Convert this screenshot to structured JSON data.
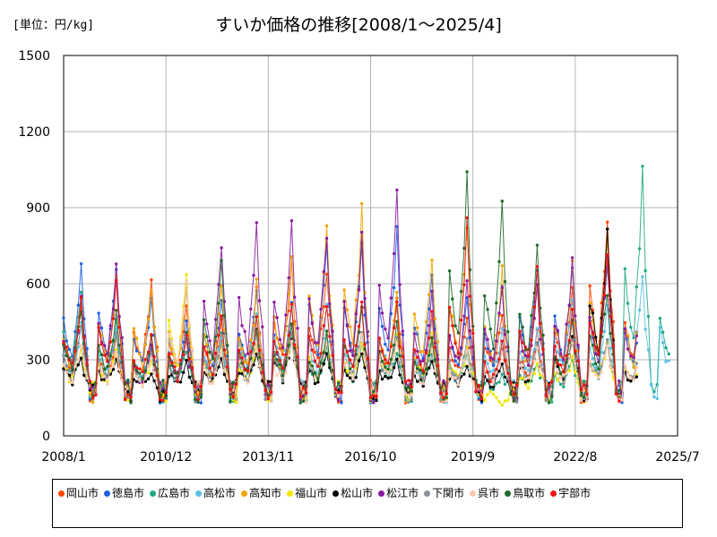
{
  "header": {
    "unit_label": "[単位：円/kg]",
    "title": "すいか価格の推移[2008/1～2025/4]"
  },
  "chart_data": {
    "type": "line",
    "title": "すいか価格の推移[2008/1～2025/4]",
    "unit": "[単位：円/kg]",
    "xlabel": "",
    "ylabel": "",
    "xlim": [
      "2008/1",
      "2025/7"
    ],
    "ylim": [
      0,
      1500
    ],
    "x_ticks": [
      "2008/1",
      "2010/12",
      "2013/11",
      "2016/10",
      "2019/9",
      "2022/8",
      "2025/7"
    ],
    "y_ticks": [
      0,
      300,
      600,
      900,
      1200,
      1500
    ],
    "grid": true,
    "legend_position": "bottom",
    "series": [
      {
        "name": "岡山市",
        "color": "#ff4500"
      },
      {
        "name": "徳島市",
        "color": "#1f5fe0"
      },
      {
        "name": "広島市",
        "color": "#20a882"
      },
      {
        "name": "高松市",
        "color": "#5bc2e7"
      },
      {
        "name": "高知市",
        "color": "#f0a500"
      },
      {
        "name": "福山市",
        "color": "#f2e600"
      },
      {
        "name": "松山市",
        "color": "#000000"
      },
      {
        "name": "松江市",
        "color": "#8b1a9e"
      },
      {
        "name": "下関市",
        "color": "#8a8f98"
      },
      {
        "name": "呉市",
        "color": "#ffc9b5"
      },
      {
        "name": "鳥取市",
        "color": "#1e6b2a"
      },
      {
        "name": "宇部市",
        "color": "#ee1111"
      }
    ],
    "series_summer_peaks": {
      "岡山市": [
        520,
        400,
        650,
        560,
        480,
        620,
        720,
        700,
        820,
        600,
        420,
        500,
        520,
        430,
        620,
        920,
        720,
        null
      ],
      "徳島市": [
        720,
        740,
        600,
        470,
        590,
        610,
        570,
        800,
        790,
        850,
        680,
        590,
        640,
        720,
        700,
        740,
        650,
        null
      ],
      "広島市": [
        620,
        500,
        350,
        360,
        420,
        380,
        450,
        360,
        400,
        340,
        330,
        340,
        250,
        290,
        310,
        400,
        1080,
        760
      ],
      "高松市": [
        450,
        460,
        380,
        620,
        420,
        530,
        560,
        520,
        540,
        560,
        460,
        360,
        440,
        460,
        560,
        520,
        640,
        620
      ],
      "高知市": [
        560,
        690,
        640,
        600,
        610,
        620,
        740,
        910,
        950,
        580,
        770,
        870,
        690,
        620,
        720,
        800,
        660,
        null
      ],
      "福山市": [
        360,
        360,
        300,
        680,
        380,
        360,
        440,
        430,
        400,
        420,
        430,
        360,
        120,
        300,
        320,
        380,
        320,
        null
      ],
      "松山市": [
        330,
        320,
        250,
        300,
        310,
        330,
        400,
        330,
        340,
        320,
        300,
        280,
        300,
        380,
        400,
        860,
        320,
        null
      ],
      "松江市": [
        560,
        730,
        360,
        400,
        810,
        890,
        860,
        880,
        830,
        1000,
        580,
        630,
        640,
        600,
        720,
        760,
        660,
        null
      ],
      "下関市": [
        450,
        430,
        340,
        390,
        380,
        420,
        430,
        420,
        440,
        410,
        390,
        390,
        360,
        380,
        380,
        400,
        380,
        null
      ],
      "呉市": [
        380,
        340,
        320,
        670,
        340,
        390,
        380,
        380,
        420,
        400,
        360,
        340,
        340,
        350,
        370,
        380,
        360,
        null
      ],
      "鳥取市": [
        540,
        520,
        400,
        420,
        700,
        460,
        480,
        420,
        520,
        460,
        400,
        1050,
        970,
        810,
        460,
        620,
        null,
        null
      ],
      "宇部市": [
        560,
        640,
        420,
        430,
        500,
        470,
        540,
        560,
        580,
        560,
        500,
        860,
        380,
        680,
        500,
        720,
        null,
        null
      ]
    }
  }
}
